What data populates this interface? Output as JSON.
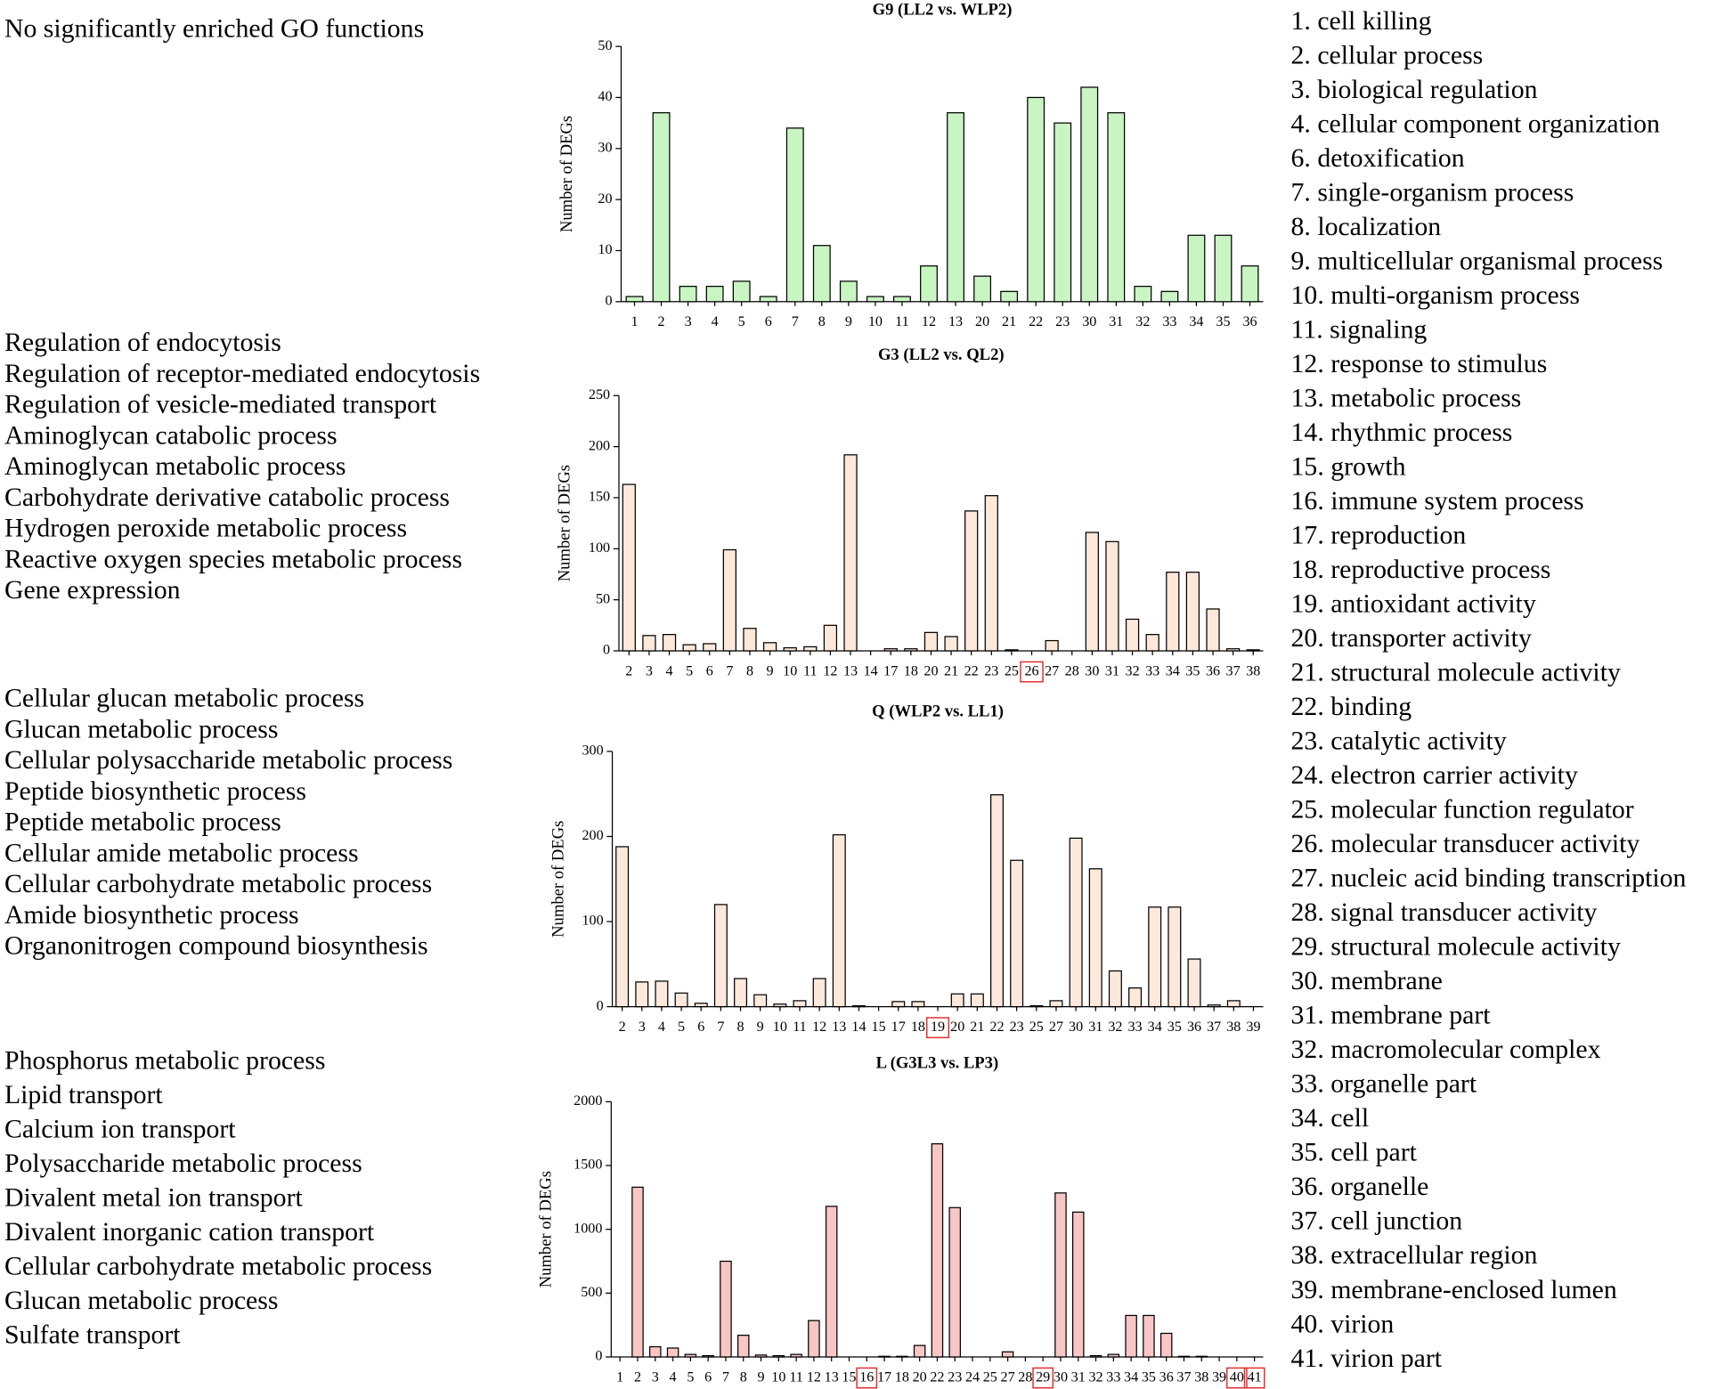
{
  "chart_data": [
    {
      "type": "bar",
      "title": "G9 (LL2 vs. WLP2)",
      "y_label": "Number of DEGs",
      "annotations": [
        "No significantly enriched GO functions"
      ],
      "categories": [
        "1",
        "2",
        "3",
        "4",
        "5",
        "6",
        "7",
        "8",
        "9",
        "10",
        "11",
        "12",
        "13",
        "20",
        "21",
        "22",
        "23",
        "30",
        "31",
        "32",
        "33",
        "34",
        "35",
        "36"
      ],
      "values": [
        1,
        37,
        3,
        3,
        4,
        1,
        34,
        11,
        4,
        1,
        1,
        7,
        37,
        5,
        2,
        40,
        35,
        42,
        37,
        3,
        2,
        13,
        13,
        7
      ],
      "color": "#c8f5c2",
      "ylim": [
        0,
        50
      ],
      "yticks": [
        0,
        10,
        20,
        30,
        40,
        50
      ],
      "highlight": [],
      "highlight_color": "#e03030"
    },
    {
      "type": "bar",
      "title": "G3 (LL2 vs. QL2)",
      "y_label": "Number of DEGs",
      "annotations": [
        "Regulation of endocytosis",
        "Regulation of receptor-mediated endocytosis",
        "Regulation of vesicle-mediated transport",
        "Aminoglycan catabolic process",
        "Aminoglycan metabolic process",
        "Carbohydrate derivative catabolic process",
        "Hydrogen peroxide metabolic process",
        "Reactive oxygen species metabolic process",
        "Gene expression"
      ],
      "categories": [
        "2",
        "3",
        "4",
        "5",
        "6",
        "7",
        "8",
        "9",
        "10",
        "11",
        "12",
        "13",
        "14",
        "17",
        "18",
        "20",
        "21",
        "22",
        "23",
        "25",
        "26",
        "27",
        "28",
        "30",
        "31",
        "32",
        "33",
        "34",
        "35",
        "36",
        "37",
        "38"
      ],
      "values": [
        163,
        15,
        16,
        6,
        7,
        99,
        22,
        8,
        3,
        4,
        25,
        192,
        0,
        2,
        2,
        18,
        14,
        137,
        152,
        1,
        0,
        10,
        0,
        116,
        107,
        31,
        16,
        77,
        77,
        41,
        2,
        1
      ],
      "color": "#fde8da",
      "ylim": [
        0,
        250
      ],
      "yticks": [
        0,
        50,
        100,
        150,
        200,
        250
      ],
      "highlight": [
        20
      ],
      "highlight_color": "#e03030"
    },
    {
      "type": "bar",
      "title": "Q (WLP2 vs. LL1)",
      "y_label": "Number of DEGs",
      "annotations": [
        "Cellular glucan metabolic process",
        "Glucan metabolic process",
        "Cellular polysaccharide metabolic process",
        "Peptide biosynthetic process",
        "Peptide metabolic process",
        "Cellular amide metabolic process",
        "Cellular carbohydrate metabolic process",
        "Amide biosynthetic process",
        "Organonitrogen compound biosynthesis"
      ],
      "categories": [
        "2",
        "3",
        "4",
        "5",
        "6",
        "7",
        "8",
        "9",
        "10",
        "11",
        "12",
        "13",
        "14",
        "15",
        "17",
        "18",
        "19",
        "20",
        "21",
        "22",
        "23",
        "25",
        "27",
        "30",
        "31",
        "32",
        "33",
        "34",
        "35",
        "36",
        "37",
        "38",
        "39"
      ],
      "values": [
        188,
        29,
        30,
        16,
        4,
        120,
        33,
        14,
        3,
        7,
        33,
        202,
        1,
        0,
        6,
        6,
        0,
        15,
        15,
        249,
        172,
        1,
        7,
        198,
        162,
        42,
        22,
        117,
        117,
        56,
        2,
        7,
        0
      ],
      "color": "#fde9db",
      "ylim": [
        0,
        300
      ],
      "yticks": [
        0,
        100,
        200,
        300
      ],
      "highlight": [
        16
      ],
      "highlight_color": "#e03030"
    },
    {
      "type": "bar",
      "title": "L (G3L3 vs. LP3)",
      "y_label": "Number of DEGs",
      "annotations": [
        "Phosphorus metabolic process",
        "Lipid transport",
        "Calcium ion transport",
        "Polysaccharide metabolic process",
        "Divalent metal ion transport",
        "Divalent inorganic cation transport",
        "Cellular carbohydrate metabolic process",
        "Glucan metabolic process",
        "Sulfate transport"
      ],
      "categories": [
        "1",
        "2",
        "3",
        "4",
        "5",
        "6",
        "7",
        "8",
        "9",
        "10",
        "11",
        "12",
        "13",
        "15",
        "16",
        "17",
        "18",
        "20",
        "22",
        "23",
        "24",
        "25",
        "27",
        "28",
        "29",
        "30",
        "31",
        "32",
        "33",
        "34",
        "35",
        "36",
        "37",
        "38",
        "39",
        "40",
        "41"
      ],
      "values": [
        0,
        1330,
        80,
        70,
        20,
        10,
        750,
        170,
        15,
        10,
        20,
        285,
        1180,
        0,
        0,
        5,
        5,
        90,
        1670,
        1170,
        0,
        0,
        40,
        0,
        0,
        1285,
        1135,
        10,
        20,
        325,
        325,
        185,
        5,
        5,
        0,
        0,
        0
      ],
      "color": "#f8c6c4",
      "ylim": [
        0,
        2000
      ],
      "yticks": [
        0,
        500,
        1000,
        1500,
        2000
      ],
      "highlight": [
        14,
        24,
        35,
        36
      ],
      "highlight_color": "#e03030"
    }
  ],
  "go_terms": [
    "1. cell killing",
    "2. cellular process",
    "3. biological regulation",
    "4. cellular component organization",
    "6. detoxification",
    "7. single-organism process",
    "8. localization",
    "9. multicellular organismal process",
    "10. multi-organism process",
    "11. signaling",
    "12. response to stimulus",
    "13. metabolic process",
    "14. rhythmic process",
    "15. growth",
    "16. immune system process",
    "17. reproduction",
    "18. reproductive process",
    "19. antioxidant activity",
    "20. transporter activity",
    "21. structural molecule activity",
    "22. binding",
    "23. catalytic activity",
    "24. electron carrier activity",
    "25. molecular function regulator",
    "26. molecular transducer activity",
    "27. nucleic acid binding transcription",
    "28. signal transducer activity",
    "29. structural molecule activity",
    "30. membrane",
    "31. membrane part",
    "32. macromolecular complex",
    "33. organelle part",
    "34. cell",
    "35. cell part",
    "36. organelle",
    "37. cell junction",
    "38. extracellular region",
    "39. membrane-enclosed lumen",
    "40. virion",
    "41. virion part"
  ]
}
